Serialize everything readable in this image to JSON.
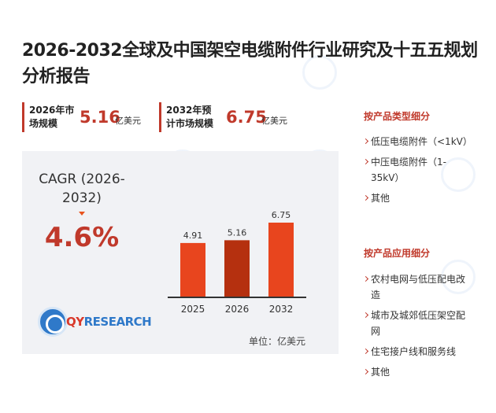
{
  "title": "2026-2032全球及中国架空电缆附件行业研究及十五五规划分析报告",
  "stats": [
    {
      "label": "2026年市场规模",
      "value": "5.16",
      "unit": "亿美元"
    },
    {
      "label": "2032年预计市场规模",
      "value": "6.75",
      "unit": "亿美元"
    }
  ],
  "cagr": {
    "label": "CAGR (2026-2032)",
    "value": "4.6%"
  },
  "logo": {
    "prefix": "QY",
    "suffix": "RESEARCH"
  },
  "unit_note": "单位：亿美元",
  "colors": {
    "accent": "#c0392b",
    "bar_main": "#e8451e",
    "bar_highlight": "#b5300f",
    "panel_bg": "#f1f2f5",
    "logo_blue": "#2f79c9"
  },
  "chart_data": {
    "type": "bar",
    "categories": [
      "2025",
      "2026",
      "2032"
    ],
    "values": [
      4.91,
      5.16,
      6.75
    ],
    "data_labels": [
      "4.91",
      "5.16",
      "6.75"
    ],
    "highlight_index": 1,
    "ylim": [
      0,
      6.75
    ],
    "title": "",
    "xlabel": "",
    "ylabel": "",
    "grid": false
  },
  "segments_by_type": {
    "heading": "按产品类型细分",
    "items": [
      "低压电缆附件（<1kV）",
      "中压电缆附件（1-35kV）",
      "其他"
    ]
  },
  "segments_by_application": {
    "heading": "按产品应用细分",
    "items": [
      "农村电网与低压配电改造",
      "城市及城郊低压架空配网",
      "住宅接户线和服务线",
      "其他"
    ]
  }
}
